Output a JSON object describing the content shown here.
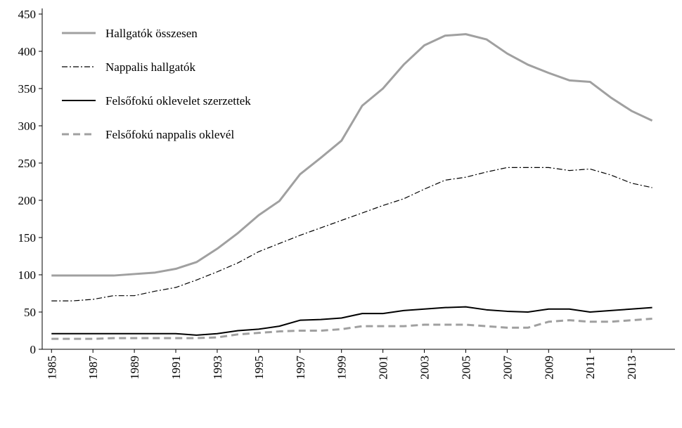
{
  "chart_data": {
    "type": "line",
    "x": [
      1985,
      1986,
      1987,
      1988,
      1989,
      1990,
      1991,
      1992,
      1993,
      1994,
      1995,
      1996,
      1997,
      1998,
      1999,
      2000,
      2001,
      2002,
      2003,
      2004,
      2005,
      2006,
      2007,
      2008,
      2009,
      2010,
      2011,
      2012,
      2013,
      2014
    ],
    "series": [
      {
        "name": "Hallgatók összesen",
        "color": "#a0a0a0",
        "style": "solid",
        "width": 3,
        "values": [
          99,
          99,
          99,
          99,
          101,
          103,
          108,
          117,
          135,
          156,
          180,
          199,
          235,
          257,
          280,
          327,
          350,
          382,
          408,
          421,
          423,
          416,
          397,
          382,
          371,
          361,
          359,
          338,
          320,
          307
        ]
      },
      {
        "name": "Nappalis hallgatók",
        "color": "#000000",
        "style": "dashdot",
        "width": 1.2,
        "values": [
          65,
          65,
          67,
          72,
          72,
          78,
          83,
          93,
          104,
          116,
          131,
          142,
          153,
          163,
          173,
          183,
          193,
          202,
          215,
          227,
          231,
          238,
          244,
          244,
          244,
          240,
          242,
          234,
          223,
          217
        ]
      },
      {
        "name": "Felsőfokú oklevelet szerzettek",
        "color": "#000000",
        "style": "solid",
        "width": 2,
        "values": [
          21,
          21,
          21,
          21,
          21,
          21,
          21,
          19,
          21,
          25,
          27,
          31,
          39,
          40,
          42,
          48,
          48,
          52,
          54,
          56,
          57,
          53,
          51,
          50,
          54,
          54,
          50,
          52,
          54,
          56
        ]
      },
      {
        "name": "Felsőfokú nappalis oklevél",
        "color": "#a0a0a0",
        "style": "dashed",
        "width": 3,
        "values": [
          14,
          14,
          14,
          15,
          15,
          15,
          15,
          15,
          16,
          20,
          22,
          24,
          25,
          25,
          27,
          31,
          31,
          31,
          33,
          33,
          33,
          31,
          29,
          29,
          37,
          39,
          37,
          37,
          39,
          41
        ]
      }
    ],
    "xlim": [
      1984.55,
      2015.1
    ],
    "xticks": [
      1985,
      1987,
      1989,
      1991,
      1993,
      1995,
      1997,
      1999,
      2001,
      2003,
      2005,
      2007,
      2009,
      2011,
      2013
    ],
    "ylim": [
      0,
      450
    ],
    "yticks": [
      0,
      50,
      100,
      150,
      200,
      250,
      300,
      350,
      400,
      450
    ],
    "legend": "top-left"
  }
}
